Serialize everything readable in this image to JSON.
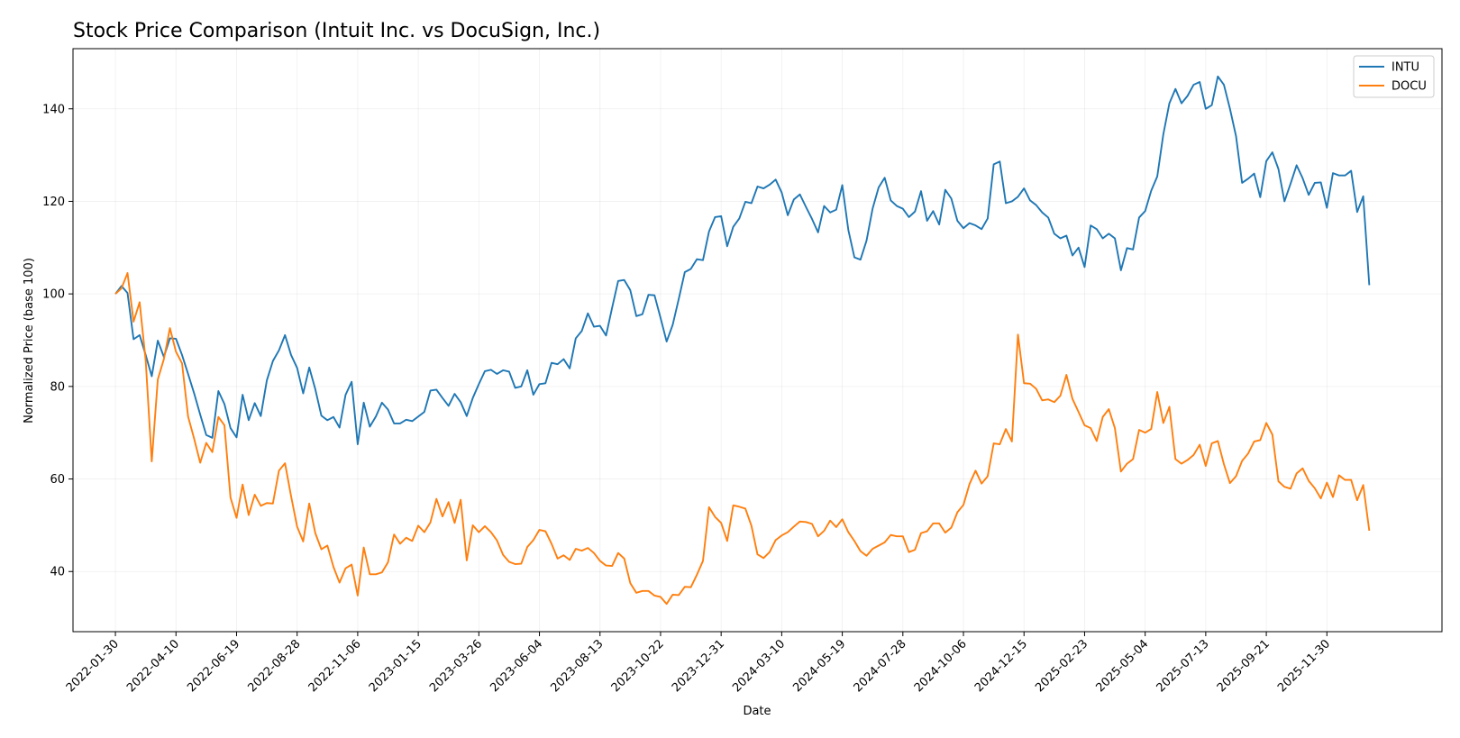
{
  "chart_data": {
    "type": "line",
    "title": "Stock Price Comparison (Intuit Inc. vs DocuSign, Inc.)",
    "xlabel": "Date",
    "ylabel": "Normalized Price (base 100)",
    "x_ticks": [
      "2022-01-30",
      "2022-04-10",
      "2022-06-19",
      "2022-08-28",
      "2022-11-06",
      "2023-01-15",
      "2023-03-26",
      "2023-06-04",
      "2023-08-13",
      "2023-10-22",
      "2023-12-31",
      "2024-03-10",
      "2024-05-19",
      "2024-07-28",
      "2024-10-06",
      "2024-12-15",
      "2025-02-23",
      "2025-05-04",
      "2025-07-13",
      "2025-09-21",
      "2025-11-30"
    ],
    "y_ticks": [
      40,
      60,
      80,
      100,
      120,
      140
    ],
    "ylim": [
      27,
      153
    ],
    "xlim_weeks": [
      -7,
      219
    ],
    "grid": true,
    "legend_position": "top-right",
    "series": [
      {
        "name": "INTU",
        "color": "#1f77b4",
        "start_date": "2022-01-30",
        "step_days": 7,
        "values": [
          100.0,
          101.7,
          100.2,
          90.2,
          91.1,
          86.8,
          82.2,
          89.9,
          86.4,
          90.4,
          90.3,
          86.8,
          82.7,
          78.5,
          73.9,
          69.5,
          68.9,
          79.0,
          76.2,
          71.0,
          69.0,
          78.2,
          72.7,
          76.4,
          73.6,
          81.3,
          85.5,
          87.8,
          91.1,
          86.8,
          84.0,
          78.5,
          84.1,
          79.4,
          73.7,
          72.7,
          73.4,
          71.1,
          78.2,
          81.0,
          67.5,
          76.5,
          71.3,
          73.5,
          76.5,
          75.0,
          72.0,
          72.0,
          72.8,
          72.5,
          73.5,
          74.5,
          79.1,
          79.3,
          77.5,
          75.8,
          78.4,
          76.6,
          73.6,
          77.5,
          80.5,
          83.3,
          83.6,
          82.7,
          83.5,
          83.2,
          79.7,
          80.0,
          83.5,
          78.2,
          80.5,
          80.7,
          85.1,
          84.8,
          85.9,
          83.9,
          90.4,
          92.0,
          95.8,
          92.9,
          93.1,
          91.0,
          97.0,
          102.8,
          103.0,
          100.8,
          95.2,
          95.6,
          99.8,
          99.7,
          94.8,
          89.7,
          93.3,
          98.9,
          104.7,
          105.4,
          107.5,
          107.3,
          113.5,
          116.6,
          116.8,
          110.3,
          114.5,
          116.3,
          119.9,
          119.6,
          123.2,
          122.8,
          123.6,
          124.7,
          121.9,
          117.0,
          120.4,
          121.5,
          118.8,
          116.2,
          113.3,
          119.0,
          117.6,
          118.2,
          123.5,
          113.8,
          107.9,
          107.4,
          111.5,
          118.4,
          123.0,
          125.1,
          120.2,
          119.0,
          118.4,
          116.6,
          117.8,
          122.2,
          115.8,
          117.9,
          115.0,
          122.5,
          120.6,
          115.8,
          114.2,
          115.3,
          114.8,
          114.0,
          116.3,
          128.0,
          128.6,
          119.6,
          120.0,
          121.0,
          122.8,
          120.2,
          119.2,
          117.6,
          116.5,
          113.0,
          112.0,
          112.6,
          108.3,
          110.0,
          105.8,
          114.8,
          114.0,
          112.0,
          113.0,
          112.0,
          105.1,
          109.9,
          109.6,
          116.5,
          117.9,
          122.3,
          125.4,
          134.5,
          141.2,
          144.3,
          141.2,
          142.8,
          145.2,
          145.8,
          140.0,
          140.8,
          147.0,
          145.2,
          140.0,
          134.1,
          124.0,
          124.9,
          126.0,
          120.9,
          128.7,
          130.6,
          127.0,
          120.0,
          123.8,
          127.8,
          125.0,
          121.4,
          124.0,
          124.1,
          118.6,
          126.1,
          125.6,
          125.6,
          126.6,
          117.7,
          121.1,
          101.9
        ]
      },
      {
        "name": "DOCU",
        "color": "#ff7f0e",
        "start_date": "2022-01-30",
        "step_days": 7,
        "values": [
          100.0,
          101.2,
          104.5,
          94.0,
          98.2,
          85.6,
          63.8,
          81.5,
          85.9,
          92.6,
          87.5,
          85.0,
          73.5,
          68.7,
          63.5,
          67.8,
          65.8,
          73.4,
          71.6,
          56.0,
          51.6,
          58.8,
          52.2,
          56.6,
          54.2,
          54.8,
          54.7,
          61.8,
          63.4,
          56.3,
          49.7,
          46.5,
          54.7,
          48.3,
          44.8,
          45.6,
          41.0,
          37.6,
          40.7,
          41.5,
          34.8,
          45.2,
          39.4,
          39.4,
          39.8,
          42.0,
          48.0,
          46.0,
          47.3,
          46.6,
          49.9,
          48.5,
          50.6,
          55.7,
          51.9,
          55.0,
          50.5,
          55.5,
          42.4,
          50.0,
          48.5,
          49.8,
          48.5,
          46.7,
          43.6,
          42.1,
          41.6,
          41.7,
          45.3,
          46.8,
          49.0,
          48.7,
          46.0,
          42.8,
          43.5,
          42.5,
          44.9,
          44.5,
          45.1,
          44.0,
          42.3,
          41.3,
          41.2,
          44.0,
          42.8,
          37.5,
          35.4,
          35.8,
          35.8,
          34.8,
          34.5,
          33.0,
          35.0,
          34.9,
          36.7,
          36.6,
          39.3,
          42.3,
          53.9,
          51.8,
          50.5,
          46.6,
          54.3,
          54.0,
          53.6,
          49.9,
          43.7,
          42.9,
          44.2,
          46.8,
          47.8,
          48.5,
          49.7,
          50.8,
          50.7,
          50.3,
          47.6,
          48.8,
          51.0,
          49.6,
          51.3,
          48.5,
          46.6,
          44.4,
          43.4,
          44.9,
          45.6,
          46.3,
          47.9,
          47.6,
          47.6,
          44.2,
          44.7,
          48.3,
          48.7,
          50.4,
          50.4,
          48.4,
          49.5,
          52.8,
          54.4,
          58.9,
          61.8,
          59.0,
          60.6,
          67.7,
          67.5,
          70.8,
          68.1,
          91.2,
          80.7,
          80.6,
          79.5,
          77.0,
          77.2,
          76.6,
          78.0,
          82.5,
          77.3,
          74.5,
          71.6,
          71.0,
          68.2,
          73.4,
          75.1,
          71.0,
          61.6,
          63.3,
          64.3,
          70.6,
          70.0,
          70.8,
          78.8,
          72.1,
          75.6,
          64.3,
          63.3,
          64.1,
          65.2,
          67.4,
          62.8,
          67.7,
          68.2,
          63.2,
          59.1,
          60.6,
          63.9,
          65.5,
          68.1,
          68.4,
          72.1,
          69.6,
          59.5,
          58.3,
          57.9,
          61.2,
          62.3,
          59.6,
          58.0,
          55.8,
          59.2,
          56.1,
          60.8,
          59.8,
          59.8,
          55.4,
          58.7,
          48.8
        ]
      }
    ]
  }
}
